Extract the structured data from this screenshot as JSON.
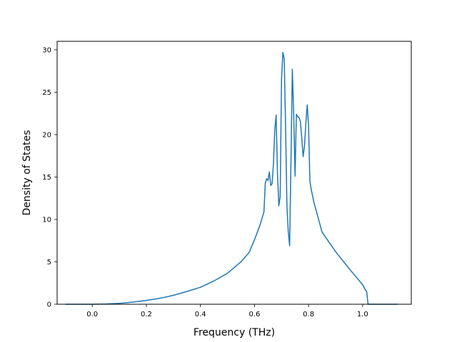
{
  "chart_data": {
    "type": "line",
    "title": "",
    "xlabel": "Frequency (THz)",
    "ylabel": "Density of States",
    "xlim": [
      -0.13,
      1.18
    ],
    "ylim": [
      0,
      31
    ],
    "xticks": [
      0.0,
      0.2,
      0.4,
      0.6,
      0.8,
      1.0
    ],
    "xtick_labels": [
      "0.0",
      "0.2",
      "0.4",
      "0.6",
      "0.8",
      "1.0"
    ],
    "yticks": [
      0,
      5,
      10,
      15,
      20,
      25,
      30
    ],
    "ytick_labels": [
      "0",
      "5",
      "10",
      "15",
      "20",
      "25",
      "30"
    ],
    "grid": false,
    "legend": "none",
    "line_color": "#1f77b4",
    "series": [
      {
        "x": [
          -0.1,
          0.0,
          0.05,
          0.1,
          0.15,
          0.2,
          0.25,
          0.3,
          0.35,
          0.4,
          0.45,
          0.5,
          0.55,
          0.58,
          0.6,
          0.62,
          0.635,
          0.64,
          0.645,
          0.65,
          0.655,
          0.66,
          0.665,
          0.67,
          0.675,
          0.68,
          0.685,
          0.69,
          0.695,
          0.7,
          0.705,
          0.71,
          0.715,
          0.72,
          0.725,
          0.73,
          0.735,
          0.74,
          0.745,
          0.75,
          0.755,
          0.76,
          0.765,
          0.77,
          0.775,
          0.78,
          0.785,
          0.79,
          0.795,
          0.8,
          0.805,
          0.81,
          0.82,
          0.85,
          0.9,
          0.95,
          1.0,
          1.01,
          1.015,
          1.02,
          1.05,
          1.1,
          1.13
        ],
        "y": [
          0.0,
          0.0,
          0.03,
          0.1,
          0.25,
          0.45,
          0.7,
          1.05,
          1.5,
          2.0,
          2.75,
          3.65,
          5.0,
          6.1,
          7.6,
          9.3,
          10.9,
          14.3,
          14.8,
          14.6,
          15.6,
          14.0,
          14.2,
          16.5,
          20.5,
          22.3,
          15.5,
          11.6,
          12.7,
          26.5,
          29.7,
          28.9,
          21.0,
          11.5,
          8.5,
          6.9,
          17.0,
          27.7,
          22.5,
          15.1,
          22.4,
          22.1,
          22.0,
          21.5,
          19.5,
          17.4,
          18.7,
          21.3,
          23.5,
          21.0,
          14.5,
          13.5,
          12.0,
          8.5,
          6.2,
          4.2,
          2.3,
          1.7,
          1.5,
          0.0,
          0.0,
          0.0,
          0.0
        ]
      }
    ]
  }
}
